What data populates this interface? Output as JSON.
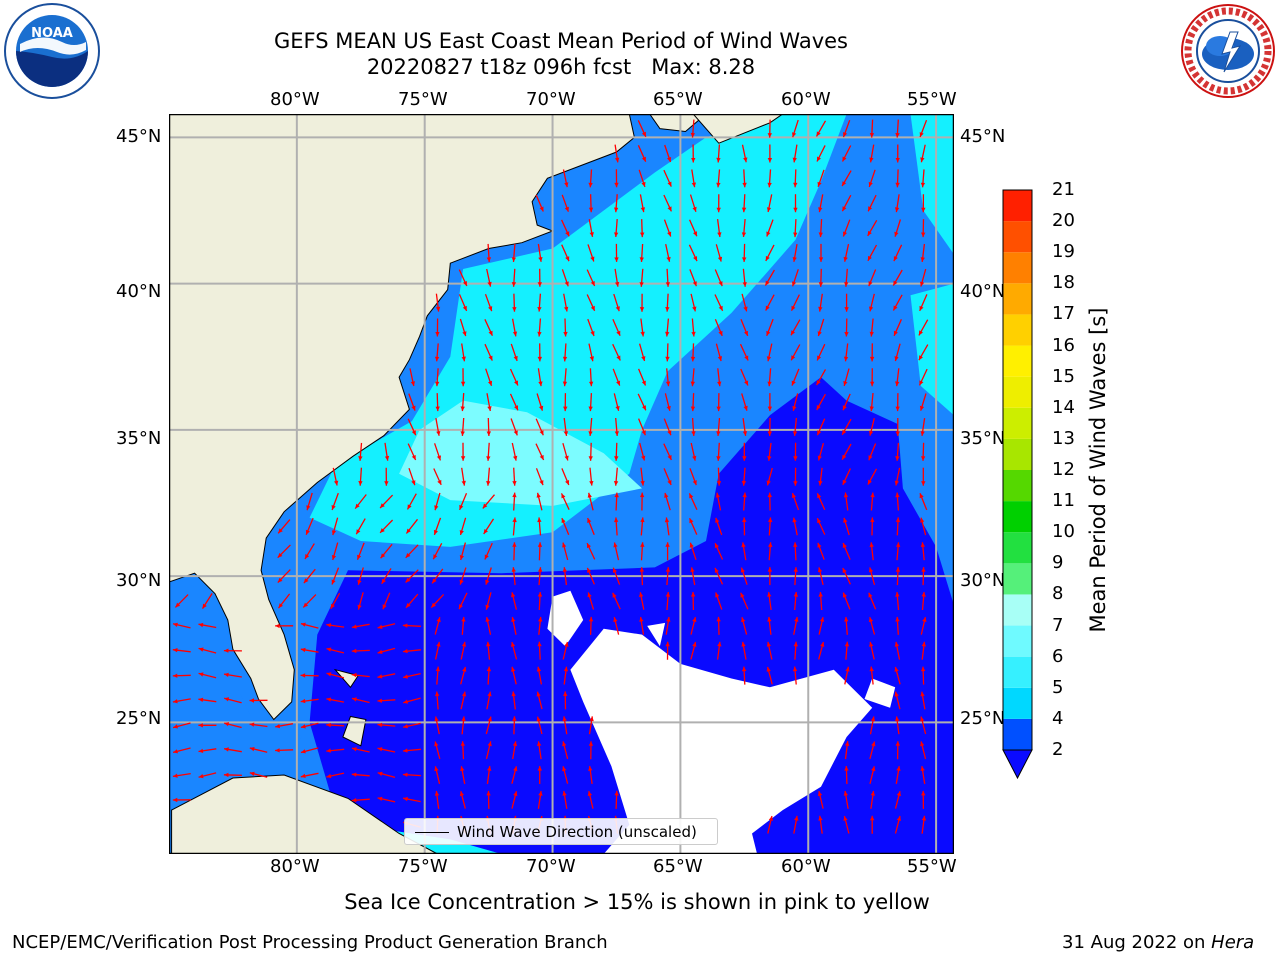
{
  "title": {
    "line1": "GEFS MEAN US East Coast Mean Period of Wind Waves",
    "line2": "20220827 t18z 096h fcst   Max: 8.28"
  },
  "logos": {
    "noaa": "NOAA",
    "nws_ring_text": "NATIONAL WEATHER SERVICE"
  },
  "map": {
    "lon_ticks": [
      "80°W",
      "75°W",
      "70°W",
      "65°W",
      "60°W",
      "55°W"
    ],
    "lat_ticks": [
      "45°N",
      "40°N",
      "35°N",
      "30°N",
      "25°N"
    ],
    "extent": {
      "lon_min": -85,
      "lon_max": -54.3,
      "lat_min": 20.5,
      "lat_max": 45.8
    },
    "land_color": "#efefdc",
    "ocean_colors": {
      "deep": "#0a0aff",
      "mid": "#1a86ff",
      "light": "#14f0ff",
      "lighter": "#7cfcff",
      "missing": "#ffffff"
    },
    "arrow_color": "#ff0000",
    "legend_label": "Wind Wave Direction (unscaled)"
  },
  "colorbar": {
    "title": "Mean Period of Wind Waves [s]",
    "levels": [
      "2",
      "4",
      "5",
      "6",
      "7",
      "8",
      "9",
      "10",
      "11",
      "12",
      "13",
      "14",
      "15",
      "16",
      "17",
      "18",
      "19",
      "20",
      "21"
    ],
    "colors": [
      "#0050ff",
      "#00d8ff",
      "#36f0ff",
      "#6ffaff",
      "#a8fff6",
      "#55f07a",
      "#22e040",
      "#00d000",
      "#55d800",
      "#a8e600",
      "#ccee00",
      "#eeee00",
      "#fff000",
      "#ffd000",
      "#ffaa00",
      "#ff8000",
      "#ff5000",
      "#ff2000"
    ],
    "under_color": "#0a0aff"
  },
  "notes": {
    "sea_ice": "Sea Ice Concentration > 15% is shown in pink to yellow",
    "branch": "NCEP/EMC/Verification Post Processing Product Generation Branch",
    "date_prefix": "31 Aug 2022 on ",
    "machine": "Hera"
  }
}
